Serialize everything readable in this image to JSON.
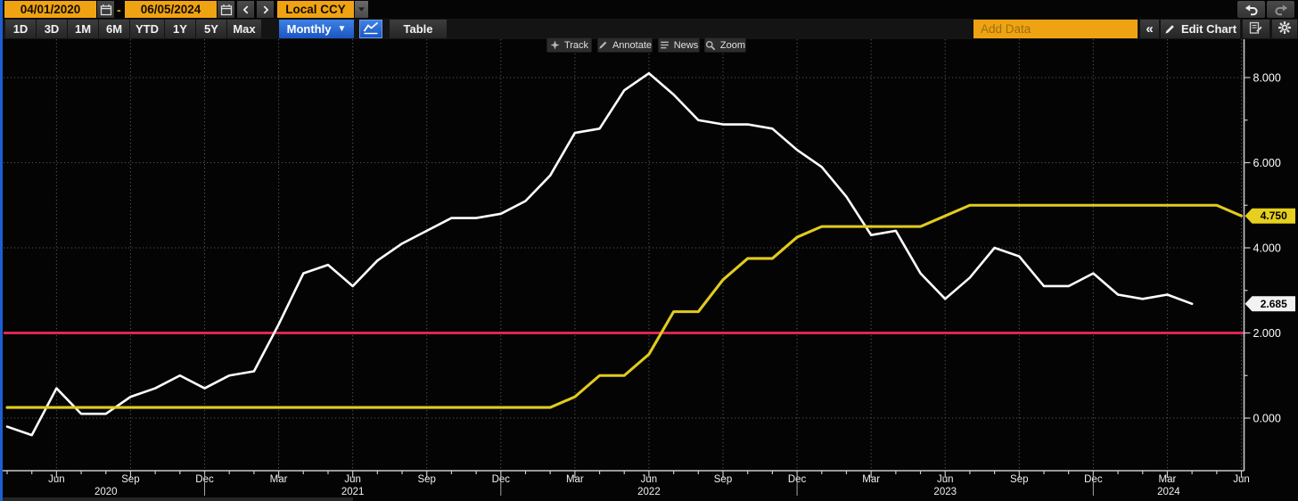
{
  "toolbar": {
    "date_start": "04/01/2020",
    "date_separator": "-",
    "date_end": "06/05/2024",
    "currency": "Local CCY",
    "ranges": [
      "1D",
      "3D",
      "1M",
      "6M",
      "YTD",
      "1Y",
      "5Y",
      "Max"
    ],
    "frequency": "Monthly",
    "frequency_caret": "▼",
    "table_label": "Table",
    "add_data_placeholder": "Add Data",
    "collapse_label": "«",
    "edit_chart_label": "Edit Chart"
  },
  "chart_toolbar": {
    "track": "Track",
    "annotate": "Annotate",
    "news": "News",
    "zoom": "Zoom"
  },
  "chart_data": {
    "type": "line",
    "frequency": "monthly",
    "x_start_month": "2020-04",
    "x_end_month": "2024-06",
    "x_quarter_tick_labels": [
      "Jun",
      "Sep",
      "Dec",
      "Mar",
      "Jun",
      "Sep",
      "Dec",
      "Mar",
      "Jun",
      "Sep",
      "Dec",
      "Mar",
      "Jun",
      "Sep",
      "Dec",
      "Mar",
      "Jun"
    ],
    "x_year_labels": [
      "2020",
      "2021",
      "2022",
      "2023",
      "2024"
    ],
    "year_divider_month_indices": [
      8,
      20,
      32,
      44
    ],
    "y_axis": {
      "min": -1.2,
      "max": 8.6,
      "tick_values": [
        0,
        2,
        4,
        6,
        8
      ],
      "tick_labels": [
        "0.000",
        "2.000",
        "4.000",
        "6.000",
        "8.000"
      ],
      "minor_tick_values": [
        1,
        3,
        5,
        7
      ]
    },
    "grid": {
      "horizontal_values": [
        0,
        2,
        4,
        6,
        8
      ],
      "vertical_every_months": 3,
      "style": "dotted"
    },
    "reference_line": {
      "value": 2.0,
      "color": "#d92950"
    },
    "series": [
      {
        "name": "inflation-yoy",
        "color": "#ffffff",
        "last_value_label": "2.685",
        "values": [
          -0.2,
          -0.4,
          0.7,
          0.1,
          0.1,
          0.5,
          0.7,
          1.0,
          0.7,
          1.0,
          1.1,
          2.2,
          3.4,
          3.6,
          3.1,
          3.7,
          4.1,
          4.4,
          4.7,
          4.7,
          4.8,
          5.1,
          5.7,
          6.7,
          6.8,
          7.7,
          8.1,
          7.6,
          7.0,
          6.9,
          6.9,
          6.8,
          6.3,
          5.9,
          5.2,
          4.3,
          4.4,
          3.4,
          2.8,
          3.3,
          4.0,
          3.8,
          3.1,
          3.1,
          3.4,
          2.9,
          2.8,
          2.9,
          2.685
        ]
      },
      {
        "name": "policy-rate",
        "color": "#e2cb1e",
        "last_value_label": "4.750",
        "values": [
          0.25,
          0.25,
          0.25,
          0.25,
          0.25,
          0.25,
          0.25,
          0.25,
          0.25,
          0.25,
          0.25,
          0.25,
          0.25,
          0.25,
          0.25,
          0.25,
          0.25,
          0.25,
          0.25,
          0.25,
          0.25,
          0.25,
          0.25,
          0.5,
          1.0,
          1.0,
          1.5,
          2.5,
          2.5,
          3.25,
          3.75,
          3.75,
          4.25,
          4.5,
          4.5,
          4.5,
          4.5,
          4.5,
          4.75,
          5.0,
          5.0,
          5.0,
          5.0,
          5.0,
          5.0,
          5.0,
          5.0,
          5.0,
          5.0,
          5.0,
          4.75
        ]
      }
    ],
    "badges": [
      {
        "label": "4.750",
        "value": 4.75,
        "fill": "#e6cf1e",
        "text_color": "#000000"
      },
      {
        "label": "2.685",
        "value": 2.685,
        "fill": "#f2f2f2",
        "text_color": "#000000"
      }
    ]
  }
}
